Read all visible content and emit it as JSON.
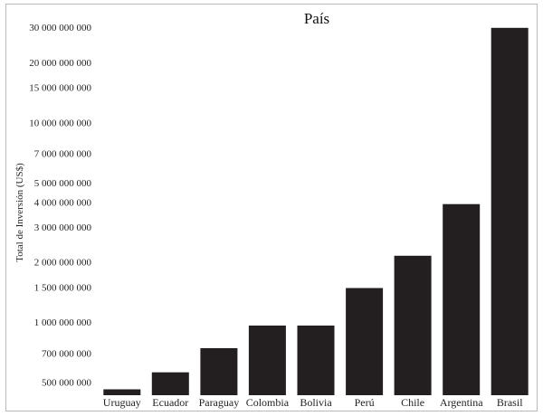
{
  "chart_data": {
    "type": "bar",
    "title": "País",
    "xlabel": "",
    "ylabel": "Total de Inversión (US$)",
    "yscale": "log",
    "ylim": [
      430000000,
      31000000000
    ],
    "grid": false,
    "legend": "none",
    "bar_color": "#231f20",
    "categories": [
      "Uruguay",
      "Ecuador",
      "Paraguay",
      "Colombia",
      "Bolivia",
      "Perú",
      "Chile",
      "Argentina",
      "Brasil"
    ],
    "values": [
      460000000,
      560000000,
      740000000,
      960000000,
      960000000,
      1480000000,
      2150000000,
      3900000000,
      29800000000
    ],
    "yticks": [
      500000000,
      700000000,
      1000000000,
      1500000000,
      2000000000,
      3000000000,
      4000000000,
      5000000000,
      7000000000,
      10000000000,
      15000000000,
      20000000000,
      30000000000
    ],
    "ytick_labels": [
      "500 000 000",
      "700 000 000",
      "1 000 000 000",
      "1 500 000 000",
      "2 000 000 000",
      "3 000 000 000",
      "4 000 000 000",
      "5 000 000 000",
      "7 000 000 000",
      "10 000 000 000",
      "15 000 000 000",
      "20 000 000 000",
      "30 000 000 000"
    ]
  }
}
